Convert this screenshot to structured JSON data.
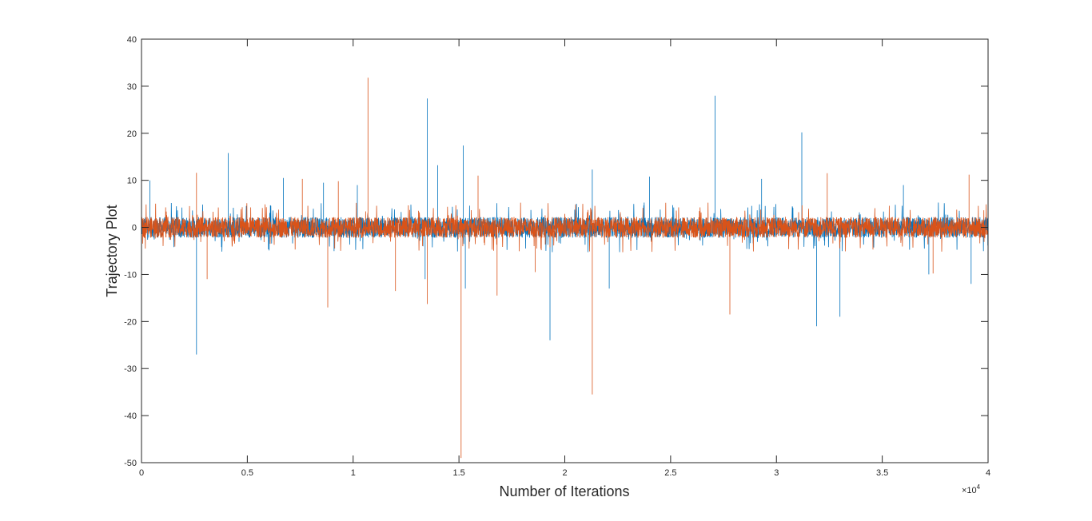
{
  "chart_data": {
    "type": "line",
    "title": "",
    "xlabel": "Number of Iterations",
    "ylabel": "Trajectory Plot",
    "xlim": [
      0,
      40000
    ],
    "ylim": [
      -50,
      40
    ],
    "x_tick_labels": [
      "0",
      "0.5",
      "1",
      "1.5",
      "2",
      "2.5",
      "3",
      "3.5",
      "4"
    ],
    "x_tick_values": [
      0,
      5000,
      10000,
      15000,
      20000,
      25000,
      30000,
      35000,
      40000
    ],
    "x_exponent_base": "×10",
    "x_exponent_power": "4",
    "y_tick_labels": [
      "40",
      "30",
      "20",
      "10",
      "0",
      "-10",
      "-20",
      "-30",
      "-40",
      "-50"
    ],
    "y_tick_values": [
      40,
      30,
      20,
      10,
      0,
      -10,
      -20,
      -30,
      -40,
      -50
    ],
    "grid": false,
    "colors": {
      "series1": "#0072BD",
      "series2": "#D95319",
      "axis": "#262626"
    },
    "noise_amplitude": 2.2,
    "series": [
      {
        "color": "#0072BD",
        "spikes": [
          [
            400,
            10
          ],
          [
            2600,
            -27
          ],
          [
            4100,
            15.8
          ],
          [
            6700,
            10.5
          ],
          [
            8600,
            9.5
          ],
          [
            10200,
            9
          ],
          [
            13500,
            27.4
          ],
          [
            13400,
            -11
          ],
          [
            14000,
            13.2
          ],
          [
            15200,
            17.4
          ],
          [
            15300,
            -13
          ],
          [
            19300,
            -24
          ],
          [
            21300,
            12.3
          ],
          [
            22100,
            -13
          ],
          [
            24000,
            10.8
          ],
          [
            27100,
            28
          ],
          [
            29300,
            10.3
          ],
          [
            31200,
            20.2
          ],
          [
            31900,
            -21
          ],
          [
            33000,
            -19
          ],
          [
            36000,
            9
          ],
          [
            37200,
            -10
          ],
          [
            39200,
            -12
          ]
        ]
      },
      {
        "color": "#D95319",
        "spikes": [
          [
            2600,
            11.6
          ],
          [
            3100,
            -11
          ],
          [
            7600,
            10.3
          ],
          [
            8800,
            -17
          ],
          [
            9300,
            9.8
          ],
          [
            10700,
            31.8
          ],
          [
            12000,
            -13.5
          ],
          [
            13500,
            -16.3
          ],
          [
            15100,
            -49
          ],
          [
            15900,
            11
          ],
          [
            16800,
            -14.5
          ],
          [
            18600,
            -9.5
          ],
          [
            21300,
            -35.5
          ],
          [
            27800,
            -18.5
          ],
          [
            32400,
            11.5
          ],
          [
            37400,
            -9.8
          ],
          [
            39100,
            11.2
          ]
        ]
      }
    ]
  }
}
